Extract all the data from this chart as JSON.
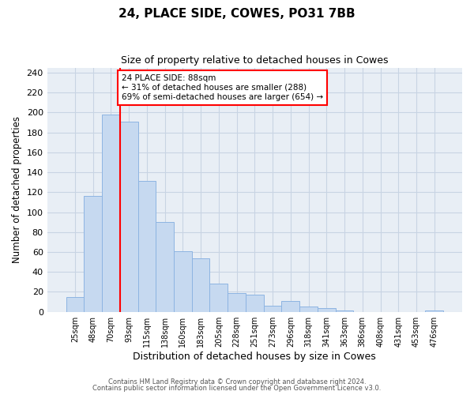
{
  "title": "24, PLACE SIDE, COWES, PO31 7BB",
  "subtitle": "Size of property relative to detached houses in Cowes",
  "xlabel": "Distribution of detached houses by size in Cowes",
  "ylabel": "Number of detached properties",
  "bar_labels": [
    "25sqm",
    "48sqm",
    "70sqm",
    "93sqm",
    "115sqm",
    "138sqm",
    "160sqm",
    "183sqm",
    "205sqm",
    "228sqm",
    "251sqm",
    "273sqm",
    "296sqm",
    "318sqm",
    "341sqm",
    "363sqm",
    "386sqm",
    "408sqm",
    "431sqm",
    "453sqm",
    "476sqm"
  ],
  "bar_values": [
    15,
    116,
    198,
    191,
    131,
    90,
    61,
    54,
    28,
    19,
    17,
    6,
    11,
    5,
    4,
    1,
    0,
    0,
    0,
    0,
    1
  ],
  "bar_color": "#c6d9f0",
  "bar_edge_color": "#8db4e2",
  "vline_index": 3,
  "vline_color": "red",
  "annotation_line1": "24 PLACE SIDE: 88sqm",
  "annotation_line2": "← 31% of detached houses are smaller (288)",
  "annotation_line3": "69% of semi-detached houses are larger (654) →",
  "annotation_box_color": "white",
  "annotation_box_edge": "red",
  "ylim": [
    0,
    245
  ],
  "yticks": [
    0,
    20,
    40,
    60,
    80,
    100,
    120,
    140,
    160,
    180,
    200,
    220,
    240
  ],
  "footer1": "Contains HM Land Registry data © Crown copyright and database right 2024.",
  "footer2": "Contains public sector information licensed under the Open Government Licence v3.0.",
  "bg_color": "#ffffff",
  "grid_color": "#c8d4e3",
  "plot_bg_color": "#e8eef5"
}
